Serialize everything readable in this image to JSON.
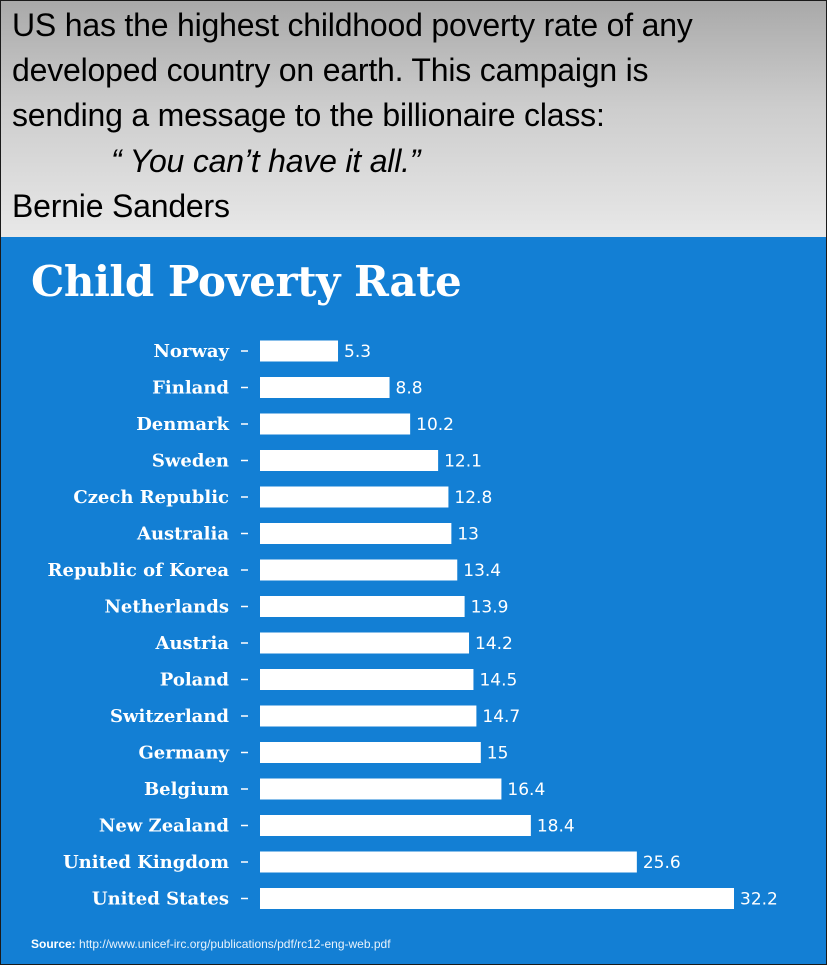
{
  "header": {
    "line1": "US  has the highest childhood poverty rate of any",
    "line2": "developed country on earth. This campaign is",
    "line3": "sending a message to the billionaire class:",
    "quote": "“ You can’t have it all.”",
    "attribution": "Bernie Sanders"
  },
  "source": {
    "label": "Source:",
    "url": "http://www.unicef-irc.org/publications/pdf/rc12-eng-web.pdf"
  },
  "colors": {
    "panel_background": "#137fd4",
    "bar": "#ffffff",
    "text": "#ffffff"
  },
  "chart_data": {
    "type": "bar",
    "orientation": "horizontal",
    "title": "Child Poverty Rate",
    "categories": [
      "Norway",
      "Finland",
      "Denmark",
      "Sweden",
      "Czech Republic",
      "Australia",
      "Republic of Korea",
      "Netherlands",
      "Austria",
      "Poland",
      "Switzerland",
      "Germany",
      "Belgium",
      "New Zealand",
      "United Kingdom",
      "United States"
    ],
    "values": [
      5.3,
      8.8,
      10.2,
      12.1,
      12.8,
      13,
      13.4,
      13.9,
      14.2,
      14.5,
      14.7,
      15,
      16.4,
      18.4,
      25.6,
      32.2
    ],
    "value_labels": [
      "5.3",
      "8.8",
      "10.2",
      "12.1",
      "12.8",
      "13",
      "13.4",
      "13.9",
      "14.2",
      "14.5",
      "14.7",
      "15",
      "16.4",
      "18.4",
      "25.6",
      "32.2"
    ],
    "xlim": [
      0,
      32.2
    ],
    "grid": false,
    "legend": "none"
  }
}
